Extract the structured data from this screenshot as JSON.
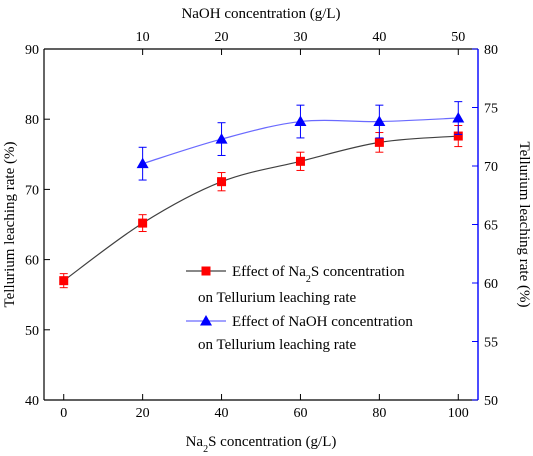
{
  "chart_data": {
    "type": "line",
    "bottom_axis": {
      "label_prefix": "Na",
      "label_sub": "2",
      "label_suffix": "S concentration (g/L)",
      "range": [
        -5,
        105
      ],
      "ticks": [
        "0",
        "20",
        "40",
        "60",
        "80",
        "100"
      ]
    },
    "top_axis": {
      "label": "NaOH concentration (g/L)",
      "range": [
        -2.5,
        52.5
      ],
      "ticks": [
        "10",
        "20",
        "30",
        "40",
        "50"
      ]
    },
    "left_axis": {
      "label": "Tellurium leaching rate (%)",
      "range": [
        40,
        90
      ],
      "ticks": [
        "40",
        "50",
        "60",
        "70",
        "80",
        "90"
      ]
    },
    "right_axis": {
      "label": "Tellurium leaching rate (%)",
      "range": [
        50,
        80
      ],
      "ticks": [
        "50",
        "55",
        "60",
        "65",
        "70",
        "75",
        "80"
      ]
    },
    "series": [
      {
        "key": "na2s",
        "axes": "bottom-left",
        "color": "#ff0000",
        "line_color": "#404040",
        "marker": "square",
        "legend_prefix": "Effect of Na",
        "legend_sub": "2",
        "legend_suffix": "S concentration",
        "legend_line2": "on  Tellurium leaching rate",
        "x": [
          0,
          20,
          40,
          60,
          80,
          100
        ],
        "y": [
          57.0,
          65.2,
          71.1,
          74.0,
          76.7,
          77.6
        ],
        "err": [
          1.0,
          1.2,
          1.3,
          1.3,
          1.4,
          1.5
        ]
      },
      {
        "key": "naoh",
        "axes": "top-right",
        "color": "#0000ff",
        "line_color": "#6a6aff",
        "marker": "triangle",
        "legend_text": "Effect of NaOH concentration",
        "legend_line2": "on  Tellurium leaching rate",
        "x": [
          10,
          20,
          30,
          40,
          50
        ],
        "y": [
          70.2,
          72.3,
          73.8,
          73.8,
          74.1
        ],
        "err": [
          1.4,
          1.4,
          1.4,
          1.4,
          1.4
        ]
      }
    ]
  }
}
